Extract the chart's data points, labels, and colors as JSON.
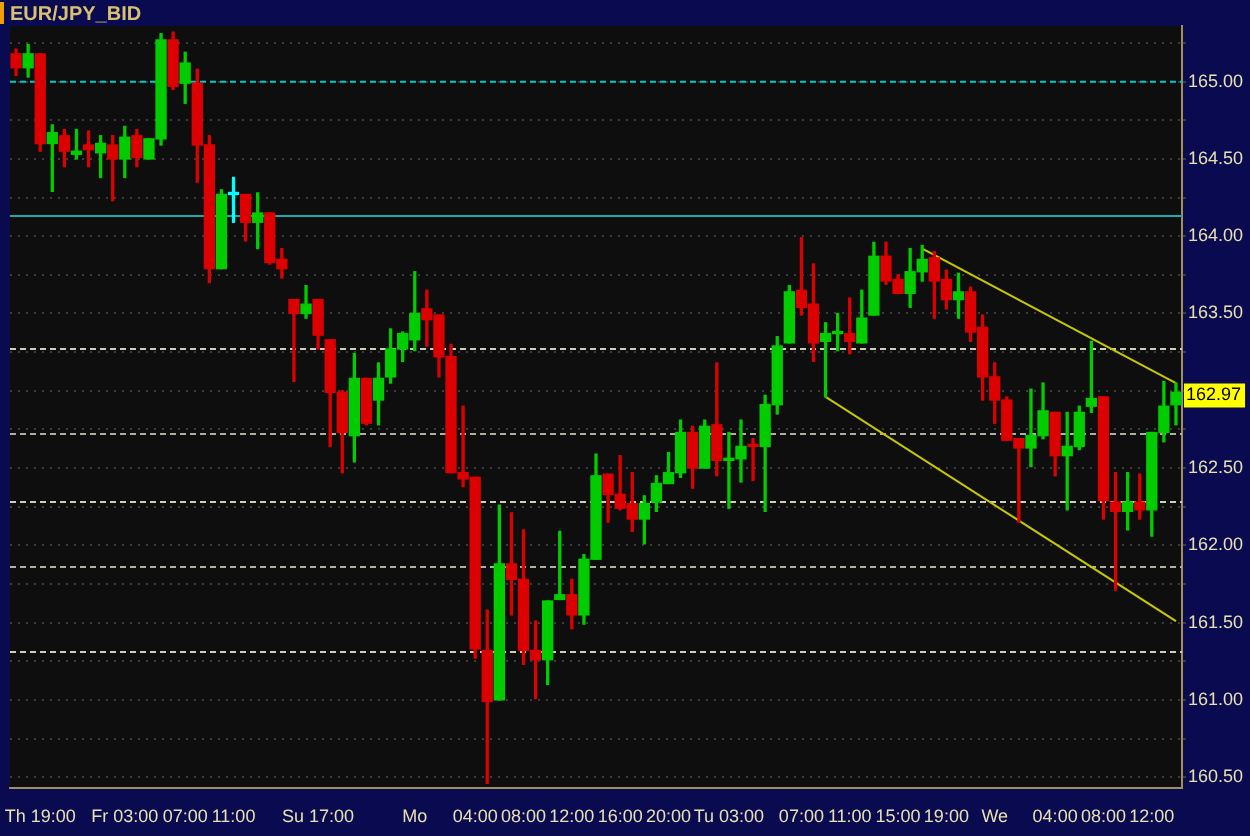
{
  "chart_data": {
    "type": "candlestick",
    "title": "EUR/JPY_BID",
    "categories": [
      null,
      null,
      "Th 19:00",
      null,
      null,
      null,
      null,
      null,
      null,
      "Fr 03:00",
      null,
      null,
      null,
      null,
      "07:00",
      null,
      null,
      null,
      "11:00",
      null,
      null,
      null,
      null,
      null,
      null,
      "Su 17:00",
      null,
      null,
      null,
      null,
      null,
      null,
      null,
      "Mo",
      null,
      null,
      null,
      null,
      "04:00",
      null,
      null,
      null,
      "08:00",
      null,
      null,
      null,
      "12:00",
      null,
      null,
      null,
      "16:00",
      null,
      null,
      null,
      "20:00",
      null,
      null,
      null,
      null,
      "Tu 03:00",
      null,
      null,
      null,
      null,
      null,
      "07:00",
      null,
      null,
      null,
      "11:00",
      null,
      null,
      null,
      "15:00",
      null,
      null,
      null,
      "19:00",
      null,
      null,
      null,
      "We",
      null,
      null,
      null,
      null,
      "04:00",
      null,
      null,
      null,
      "08:00",
      null,
      null,
      null,
      "12:00",
      null,
      null
    ],
    "ohlc": [
      [
        165.18,
        165.21,
        165.04,
        165.09
      ],
      [
        165.09,
        165.24,
        165.03,
        165.18
      ],
      [
        165.18,
        165.18,
        164.55,
        164.6
      ],
      [
        164.6,
        164.72,
        164.29,
        164.67
      ],
      [
        164.65,
        164.69,
        164.45,
        164.55
      ],
      [
        164.53,
        164.69,
        164.5,
        164.55
      ],
      [
        164.59,
        164.68,
        164.45,
        164.56
      ],
      [
        164.54,
        164.65,
        164.38,
        164.6
      ],
      [
        164.59,
        164.65,
        164.23,
        164.5
      ],
      [
        164.5,
        164.71,
        164.38,
        164.64
      ],
      [
        164.65,
        164.69,
        164.45,
        164.51
      ],
      [
        164.5,
        164.63,
        164.5,
        164.63
      ],
      [
        164.63,
        165.31,
        164.59,
        165.27
      ],
      [
        165.27,
        165.32,
        164.95,
        164.97
      ],
      [
        164.99,
        165.19,
        164.86,
        165.12
      ],
      [
        164.99,
        165.08,
        164.35,
        164.59
      ],
      [
        164.59,
        164.65,
        163.7,
        163.79
      ],
      [
        163.79,
        164.3,
        163.79,
        164.27
      ],
      [
        164.27,
        164.38,
        164.09,
        164.27
      ],
      [
        164.27,
        164.27,
        163.97,
        164.09
      ],
      [
        164.09,
        164.28,
        163.92,
        164.15
      ],
      [
        164.15,
        164.15,
        163.82,
        163.83
      ],
      [
        163.85,
        163.92,
        163.73,
        163.79
      ],
      [
        163.59,
        163.59,
        163.06,
        163.5
      ],
      [
        163.5,
        163.68,
        163.47,
        163.56
      ],
      [
        163.59,
        163.59,
        163.27,
        163.36
      ],
      [
        163.33,
        163.33,
        162.64,
        162.99
      ],
      [
        162.99,
        163.0,
        162.47,
        162.73
      ],
      [
        162.71,
        163.24,
        162.54,
        163.08
      ],
      [
        163.08,
        163.08,
        162.78,
        162.79
      ],
      [
        162.94,
        163.18,
        162.78,
        163.08
      ],
      [
        163.09,
        163.4,
        163.05,
        163.27
      ],
      [
        163.27,
        163.38,
        163.19,
        163.37
      ],
      [
        163.33,
        163.77,
        163.26,
        163.5
      ],
      [
        163.53,
        163.65,
        163.29,
        163.46
      ],
      [
        163.49,
        163.49,
        163.09,
        163.22
      ],
      [
        163.22,
        163.3,
        162.47,
        162.47
      ],
      [
        162.47,
        162.9,
        162.38,
        162.43
      ],
      [
        162.44,
        162.44,
        161.27,
        161.33
      ],
      [
        161.32,
        161.58,
        160.46,
        160.99
      ],
      [
        161.0,
        162.26,
        161.0,
        161.88
      ],
      [
        161.88,
        162.21,
        161.55,
        161.78
      ],
      [
        161.78,
        162.1,
        161.23,
        161.32
      ],
      [
        161.32,
        161.51,
        161.01,
        161.26
      ],
      [
        161.26,
        161.64,
        161.1,
        161.64
      ],
      [
        161.65,
        162.09,
        161.65,
        161.68
      ],
      [
        161.68,
        161.78,
        161.46,
        161.55
      ],
      [
        161.55,
        161.94,
        161.49,
        161.91
      ],
      [
        161.91,
        162.59,
        161.91,
        162.45
      ],
      [
        162.46,
        162.46,
        162.15,
        162.33
      ],
      [
        162.33,
        162.58,
        162.23,
        162.24
      ],
      [
        162.27,
        162.47,
        162.09,
        162.17
      ],
      [
        162.17,
        162.32,
        162.01,
        162.27
      ],
      [
        162.28,
        162.45,
        162.22,
        162.4
      ],
      [
        162.4,
        162.6,
        162.4,
        162.47
      ],
      [
        162.47,
        162.81,
        162.44,
        162.73
      ],
      [
        162.73,
        162.77,
        162.37,
        162.5
      ],
      [
        162.5,
        162.81,
        162.5,
        162.77
      ],
      [
        162.78,
        163.18,
        162.45,
        162.55
      ],
      [
        162.55,
        162.73,
        162.24,
        162.56
      ],
      [
        162.56,
        162.81,
        162.41,
        162.64
      ],
      [
        162.65,
        162.69,
        162.42,
        162.64
      ],
      [
        162.64,
        162.97,
        162.22,
        162.91
      ],
      [
        162.91,
        163.35,
        162.85,
        163.29
      ],
      [
        163.31,
        163.68,
        163.31,
        163.64
      ],
      [
        163.65,
        163.99,
        163.49,
        163.54
      ],
      [
        163.56,
        163.82,
        163.19,
        163.31
      ],
      [
        163.32,
        163.44,
        162.96,
        163.37
      ],
      [
        163.37,
        163.5,
        163.26,
        163.38
      ],
      [
        163.37,
        163.6,
        163.24,
        163.32
      ],
      [
        163.31,
        163.65,
        163.31,
        163.47
      ],
      [
        163.49,
        163.96,
        163.49,
        163.87
      ],
      [
        163.87,
        163.96,
        163.69,
        163.71
      ],
      [
        163.72,
        163.75,
        163.63,
        163.63
      ],
      [
        163.63,
        163.92,
        163.54,
        163.77
      ],
      [
        163.77,
        163.94,
        163.71,
        163.85
      ],
      [
        163.86,
        163.9,
        163.47,
        163.71
      ],
      [
        163.72,
        163.78,
        163.53,
        163.59
      ],
      [
        163.59,
        163.76,
        163.47,
        163.64
      ],
      [
        163.64,
        163.67,
        163.32,
        163.38
      ],
      [
        163.41,
        163.49,
        162.94,
        163.09
      ],
      [
        163.09,
        163.18,
        162.79,
        162.94
      ],
      [
        162.94,
        162.96,
        162.68,
        162.68
      ],
      [
        162.69,
        162.69,
        162.15,
        162.63
      ],
      [
        162.63,
        163.01,
        162.51,
        162.71
      ],
      [
        162.71,
        163.05,
        162.69,
        162.87
      ],
      [
        162.86,
        162.86,
        162.45,
        162.58
      ],
      [
        162.58,
        162.86,
        162.23,
        162.64
      ],
      [
        162.64,
        162.9,
        162.62,
        162.86
      ],
      [
        162.9,
        163.32,
        162.86,
        162.95
      ],
      [
        162.96,
        162.96,
        162.17,
        162.29
      ],
      [
        162.28,
        162.47,
        161.71,
        162.22
      ],
      [
        162.22,
        162.47,
        162.1,
        162.28
      ],
      [
        162.28,
        162.46,
        162.17,
        162.23
      ],
      [
        162.23,
        162.73,
        162.06,
        162.73
      ],
      [
        162.73,
        163.06,
        162.67,
        162.9
      ],
      [
        162.91,
        163.05,
        162.78,
        162.99
      ]
    ],
    "colors": [
      "#dd0000",
      "#00cc00",
      "#dd0000",
      "#00cc00",
      "#dd0000",
      "#00cc00",
      "#dd0000",
      "#00cc00",
      "#dd0000",
      "#00cc00",
      "#dd0000",
      "#00cc00",
      "#00cc00",
      "#dd0000",
      "#00cc00",
      "#dd0000",
      "#dd0000",
      "#00cc00",
      "#00ffff",
      "#dd0000",
      "#00cc00",
      "#dd0000",
      "#dd0000",
      "#dd0000",
      "#00cc00",
      "#dd0000",
      "#dd0000",
      "#dd0000",
      "#00cc00",
      "#dd0000",
      "#00cc00",
      "#00cc00",
      "#00cc00",
      "#00cc00",
      "#dd0000",
      "#dd0000",
      "#dd0000",
      "#dd0000",
      "#dd0000",
      "#dd0000",
      "#00cc00",
      "#dd0000",
      "#dd0000",
      "#dd0000",
      "#00cc00",
      "#00cc00",
      "#dd0000",
      "#00cc00",
      "#00cc00",
      "#dd0000",
      "#dd0000",
      "#dd0000",
      "#00cc00",
      "#00cc00",
      "#00cc00",
      "#00cc00",
      "#dd0000",
      "#00cc00",
      "#dd0000",
      "#00cc00",
      "#00cc00",
      "#dd0000",
      "#00cc00",
      "#00cc00",
      "#00cc00",
      "#dd0000",
      "#dd0000",
      "#00cc00",
      "#00cc00",
      "#dd0000",
      "#00cc00",
      "#00cc00",
      "#dd0000",
      "#dd0000",
      "#00cc00",
      "#00cc00",
      "#dd0000",
      "#dd0000",
      "#00cc00",
      "#dd0000",
      "#dd0000",
      "#dd0000",
      "#dd0000",
      "#dd0000",
      "#00cc00",
      "#00cc00",
      "#dd0000",
      "#00cc00",
      "#00cc00",
      "#00cc00",
      "#dd0000",
      "#dd0000",
      "#00cc00",
      "#dd0000",
      "#00cc00",
      "#00cc00",
      "#00cc00"
    ],
    "series": [
      {
        "type": "line",
        "color": "#c8c800",
        "values": [
          null,
          null,
          null,
          null,
          null,
          null,
          null,
          null,
          null,
          null,
          null,
          null,
          null,
          null,
          null,
          null,
          null,
          null,
          null,
          null,
          null,
          null,
          null,
          null,
          null,
          null,
          null,
          null,
          null,
          null,
          null,
          null,
          null,
          null,
          null,
          null,
          null,
          null,
          null,
          null,
          null,
          null,
          null,
          null,
          null,
          null,
          null,
          null,
          null,
          null,
          null,
          null,
          null,
          null,
          null,
          null,
          null,
          null,
          null,
          null,
          null,
          null,
          null,
          null,
          null,
          null,
          null,
          null,
          null,
          null,
          null,
          null,
          null,
          null,
          null,
          163.92,
          null,
          null,
          null,
          null,
          null,
          null,
          null,
          null,
          null,
          null,
          null,
          null,
          null,
          null,
          null,
          null,
          null,
          null,
          null,
          null,
          163.05
        ]
      },
      {
        "type": "line",
        "color": "#c8c800",
        "values": [
          null,
          null,
          null,
          null,
          null,
          null,
          null,
          null,
          null,
          null,
          null,
          null,
          null,
          null,
          null,
          null,
          null,
          null,
          null,
          null,
          null,
          null,
          null,
          null,
          null,
          null,
          null,
          null,
          null,
          null,
          null,
          null,
          null,
          null,
          null,
          null,
          null,
          null,
          null,
          null,
          null,
          null,
          null,
          null,
          null,
          null,
          null,
          null,
          null,
          null,
          null,
          null,
          null,
          null,
          null,
          null,
          null,
          null,
          null,
          null,
          null,
          null,
          null,
          null,
          null,
          null,
          null,
          162.96,
          null,
          null,
          null,
          null,
          null,
          null,
          null,
          null,
          null,
          null,
          null,
          null,
          null,
          null,
          null,
          null,
          null,
          null,
          null,
          null,
          null,
          null,
          null,
          null,
          null,
          null,
          null,
          null,
          161.51
        ]
      }
    ],
    "ylim": [
      160.43,
      165.36
    ],
    "yticks": [
      {
        "value": 160.5,
        "label": "160.50"
      },
      {
        "value": 160.75,
        "label": null
      },
      {
        "value": 161,
        "label": "161.00"
      },
      {
        "value": 161.25,
        "label": null
      },
      {
        "value": 161.5,
        "label": "161.50"
      },
      {
        "value": 161.75,
        "label": null
      },
      {
        "value": 162,
        "label": "162.00"
      },
      {
        "value": 162.25,
        "label": null
      },
      {
        "value": 162.5,
        "label": "162.50"
      },
      {
        "value": 162.75,
        "label": null
      },
      {
        "value": 163,
        "label": null
      },
      {
        "value": 163.25,
        "label": null
      },
      {
        "value": 163.5,
        "label": "163.50"
      },
      {
        "value": 163.75,
        "label": null
      },
      {
        "value": 164,
        "label": "164.00"
      },
      {
        "value": 164.25,
        "label": null
      },
      {
        "value": 164.5,
        "label": "164.50"
      },
      {
        "value": 164.75,
        "label": null
      },
      {
        "value": 165,
        "label": "165.00"
      },
      {
        "value": 165.25,
        "label": null
      }
    ],
    "grid": "y",
    "ref_lines": [
      {
        "axis": "y",
        "value": 165.0,
        "color": "#00c8c8",
        "line_style": "dashed"
      },
      {
        "axis": "y",
        "value": 164.13,
        "color": "#20a8a8",
        "line_style": "solid"
      },
      {
        "axis": "y",
        "value": 163.27,
        "color": "#d0d0b8",
        "line_style": "dashed"
      },
      {
        "axis": "y",
        "value": 162.72,
        "color": "#b0b0a0",
        "line_style": "dashed"
      },
      {
        "axis": "y",
        "value": 162.28,
        "color": "#d0d0b8",
        "line_style": "dashed"
      },
      {
        "axis": "y",
        "value": 161.86,
        "color": "#b0b0a0",
        "line_style": "dashed"
      },
      {
        "axis": "y",
        "value": 161.31,
        "color": "#d0d0b8",
        "line_style": "dashed"
      }
    ],
    "annotations": [
      {
        "text": "162.97",
        "y": 162.97
      }
    ]
  }
}
